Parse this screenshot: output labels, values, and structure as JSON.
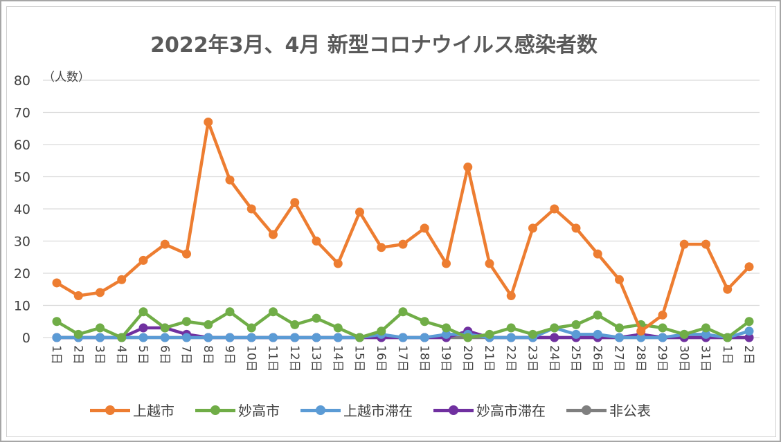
{
  "chart_data": {
    "type": "line",
    "title": "2022年3月、4月 新型コロナウイルス感染者数",
    "ylabel": "（人数）",
    "xlabel": "",
    "ylim": [
      0,
      80
    ],
    "yticks": [
      0,
      10,
      20,
      30,
      40,
      50,
      60,
      70,
      80
    ],
    "grid": true,
    "legend_position": "bottom",
    "categories": [
      "1日",
      "2日",
      "3日",
      "4日",
      "5日",
      "6日",
      "7日",
      "8日",
      "9日",
      "10日",
      "11日",
      "12日",
      "13日",
      "14日",
      "15日",
      "16日",
      "17日",
      "18日",
      "19日",
      "20日",
      "21日",
      "22日",
      "23日",
      "24日",
      "25日",
      "26日",
      "27日",
      "28日",
      "29日",
      "30日",
      "31日",
      "1日",
      "2日"
    ],
    "series": [
      {
        "name": "上越市",
        "color": "#ED7D31",
        "values": [
          17,
          13,
          14,
          18,
          24,
          29,
          26,
          67,
          49,
          40,
          32,
          42,
          30,
          23,
          39,
          28,
          29,
          34,
          23,
          53,
          23,
          13,
          34,
          40,
          34,
          26,
          18,
          2,
          7,
          29,
          29,
          15,
          22
        ]
      },
      {
        "name": "妙高市",
        "color": "#70AD47",
        "values": [
          5,
          1,
          3,
          0,
          8,
          3,
          5,
          4,
          8,
          3,
          8,
          4,
          6,
          3,
          0,
          2,
          8,
          5,
          3,
          0,
          1,
          3,
          1,
          3,
          4,
          7,
          3,
          4,
          3,
          1,
          3,
          0,
          5
        ]
      },
      {
        "name": "上越市滞在",
        "color": "#5B9BD5",
        "values": [
          0,
          0,
          0,
          0,
          0,
          0,
          0,
          0,
          0,
          0,
          0,
          0,
          0,
          0,
          0,
          1,
          0,
          0,
          1,
          1,
          0,
          0,
          0,
          3,
          1,
          1,
          0,
          0,
          0,
          1,
          1,
          0,
          2
        ]
      },
      {
        "name": "妙高市滞在",
        "color": "#7030A0",
        "values": [
          0,
          0,
          0,
          0,
          3,
          3,
          1,
          0,
          0,
          0,
          0,
          0,
          0,
          0,
          0,
          0,
          0,
          0,
          0,
          2,
          0,
          0,
          0,
          0,
          0,
          0,
          0,
          1,
          0,
          0,
          0,
          0,
          0
        ]
      },
      {
        "name": "非公表",
        "color": "#7F7F7F",
        "values": [
          0,
          0,
          0,
          0,
          0,
          0,
          0,
          0,
          0,
          0,
          0,
          0,
          0,
          0,
          0,
          0,
          0,
          0,
          0,
          0,
          0,
          0,
          0,
          0,
          0,
          0,
          0,
          0,
          0,
          0,
          0,
          0,
          0
        ]
      }
    ]
  }
}
